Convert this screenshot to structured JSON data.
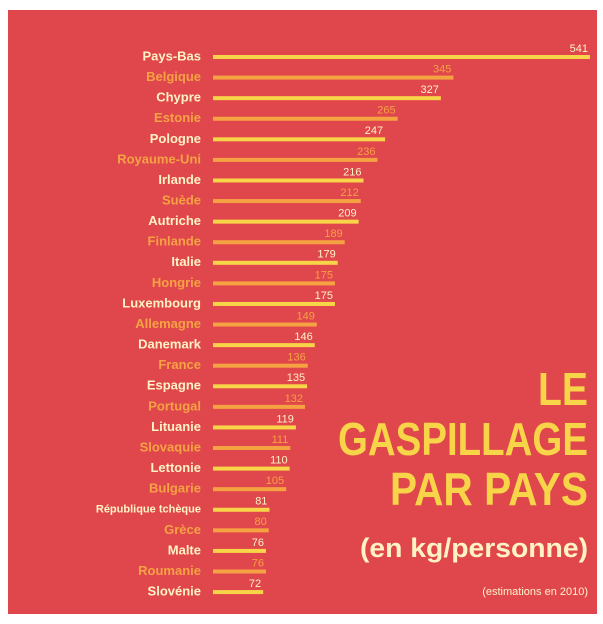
{
  "chart_data": {
    "type": "bar",
    "orientation": "horizontal",
    "title": [
      "LE",
      "GASPILLAGE",
      "PAR PAYS"
    ],
    "subtitle": "(en kg/personne)",
    "note": "(estimations en 2010)",
    "categories": [
      "Pays-Bas",
      "Belgique",
      "Chypre",
      "Estonie",
      "Pologne",
      "Royaume-Uni",
      "Irlande",
      "Suède",
      "Autriche",
      "Finlande",
      "Italie",
      "Hongrie",
      "Luxembourg",
      "Allemagne",
      "Danemark",
      "France",
      "Espagne",
      "Portugal",
      "Lituanie",
      "Slovaquie",
      "Lettonie",
      "Bulgarie",
      "République tchèque",
      "Grèce",
      "Malte",
      "Roumanie",
      "Slovénie"
    ],
    "values": [
      541,
      345,
      327,
      265,
      247,
      236,
      216,
      212,
      209,
      189,
      179,
      175,
      175,
      149,
      146,
      136,
      135,
      132,
      119,
      111,
      110,
      105,
      81,
      80,
      76,
      76,
      72
    ],
    "bar_colors": [
      "#f8d548",
      "#f5a243"
    ],
    "label_colors": [
      "#fff3c4",
      "#f5a243"
    ],
    "background": "#e0474c"
  }
}
